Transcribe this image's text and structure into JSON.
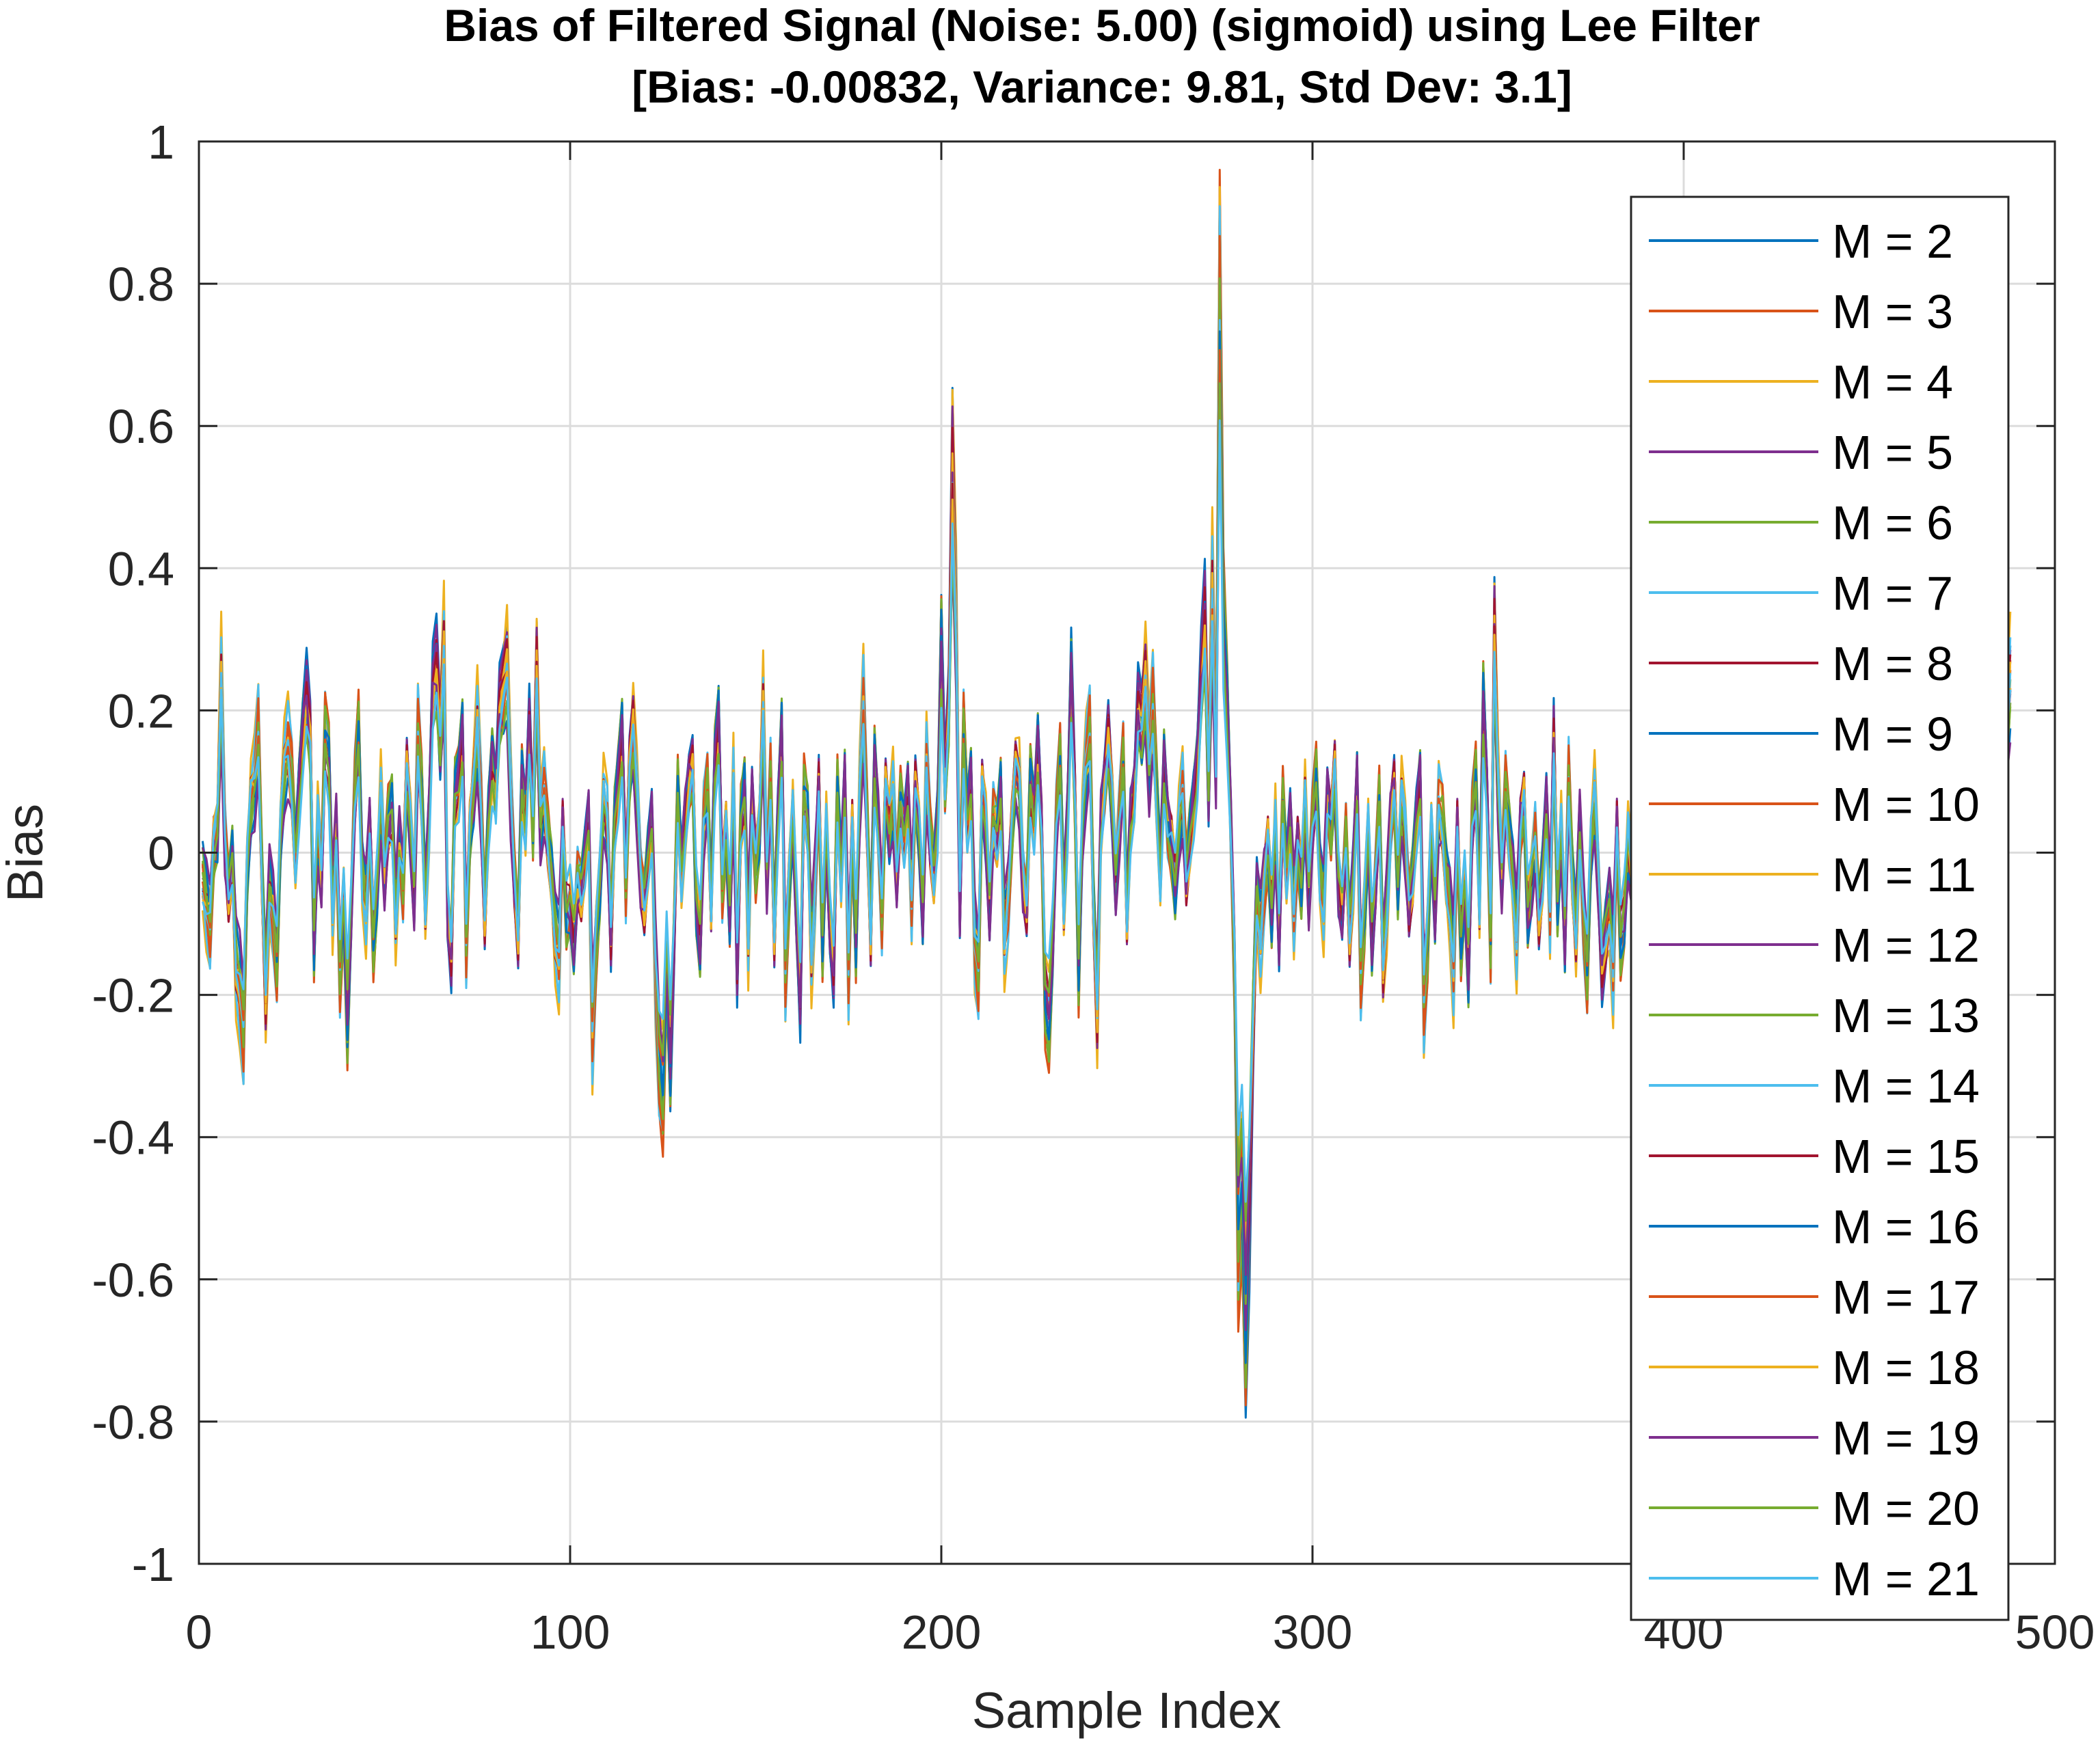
{
  "chart_data": {
    "type": "line",
    "title": "Bias of Filtered Signal (Noise: 5.00) (sigmoid) using Lee Filter",
    "subtitle": "[Bias: -0.00832, Variance: 9.81, Std Dev: 3.1]",
    "xlabel": "Sample Index",
    "ylabel": "Bias",
    "xlim": [
      0,
      500
    ],
    "ylim": [
      -1,
      1
    ],
    "x_ticks": [
      "0",
      "100",
      "200",
      "300",
      "400",
      "500"
    ],
    "y_ticks": [
      "1",
      "0.8",
      "0.6",
      "0.4",
      "0.2",
      "0",
      "-0.2",
      "-0.4",
      "-0.6",
      "-0.8",
      "-1"
    ],
    "grid": true,
    "legend_position": "right",
    "x_start": 1,
    "x_step": 1,
    "base_series": [
      -0.05,
      -0.09,
      -0.12,
      0.02,
      0.05,
      0.3,
      0.02,
      -0.08,
      -0.02,
      -0.2,
      -0.23,
      -0.3,
      -0.02,
      0.1,
      0.12,
      0.2,
      -0.05,
      -0.25,
      -0.06,
      -0.1,
      -0.18,
      0.05,
      0.15,
      0.18,
      0.12,
      -0.02,
      0.1,
      0.2,
      0.27,
      0.2,
      -0.15,
      0.05,
      -0.05,
      0.2,
      0.15,
      -0.1,
      0.05,
      -0.2,
      -0.08,
      -0.28,
      -0.1,
      0.1,
      0.2,
      -0.05,
      -0.1,
      0.05,
      -0.15,
      -0.05,
      0.1,
      -0.05,
      0.05,
      0.07,
      -0.12,
      0.02,
      -0.05,
      0.15,
      0.05,
      -0.08,
      0.2,
      0.1,
      -0.1,
      0.05,
      0.28,
      0.32,
      0.2,
      0.35,
      -0.1,
      -0.18,
      0.1,
      0.12,
      0.2,
      -0.15,
      0.05,
      0.12,
      0.22,
      0.08,
      -0.12,
      0.05,
      0.15,
      0.1,
      0.25,
      0.28,
      0.32,
      0.1,
      -0.05,
      -0.15,
      0.12,
      0.05,
      0.22,
      0.05,
      0.32,
      0.05,
      0.1,
      0.02,
      -0.05,
      -0.15,
      -0.18,
      0.05,
      -0.1,
      -0.08,
      -0.15,
      -0.05,
      -0.08,
      -0.02,
      0.05,
      -0.3,
      -0.15,
      -0.05,
      0.1,
      0.05,
      -0.15,
      0.05,
      0.12,
      0.2,
      -0.05,
      0.15,
      0.22,
      0.1,
      -0.05,
      -0.1,
      -0.02,
      0.05,
      -0.2,
      -0.35,
      -0.4,
      -0.18,
      -0.35,
      -0.15,
      0.1,
      -0.05,
      0.05,
      0.12,
      0.15,
      -0.08,
      -0.15,
      0.05,
      0.1,
      -0.1,
      0.15,
      0.22,
      -0.05,
      0.05,
      -0.1,
      0.12,
      -0.2,
      0.05,
      0.1,
      -0.15,
      0.1,
      -0.02,
      0.05,
      0.25,
      -0.05,
      0.12,
      -0.15,
      0.05,
      0.2,
      -0.2,
      -0.05,
      0.08,
      -0.1,
      -0.25,
      0.1,
      0.05,
      -0.18,
      -0.05,
      0.12,
      -0.15,
      0.05,
      -0.12,
      -0.2,
      0.1,
      -0.05,
      0.12,
      -0.2,
      0.05,
      -0.15,
      0.1,
      0.25,
      0.05,
      -0.15,
      0.15,
      0.05,
      -0.1,
      0.12,
      0.05,
      0.1,
      -0.05,
      0.08,
      0.02,
      0.1,
      -0.08,
      0.12,
      0.05,
      -0.1,
      0.15,
      0.02,
      -0.05,
      0.05,
      0.35,
      0.12,
      0.25,
      0.65,
      0.4,
      -0.1,
      0.2,
      0.05,
      0.12,
      -0.15,
      -0.2,
      0.12,
      0.05,
      -0.1,
      0.05,
      0.02,
      0.1,
      -0.15,
      -0.08,
      0.05,
      0.15,
      0.12,
      -0.05,
      -0.1,
      0.12,
      0.05,
      0.18,
      0.05,
      -0.25,
      -0.28,
      -0.15,
      0.05,
      0.15,
      -0.1,
      0.05,
      0.3,
      0.1,
      -0.2,
      0.05,
      0.15,
      0.2,
      -0.1,
      -0.28,
      0.05,
      0.12,
      0.2,
      0.1,
      -0.05,
      0.05,
      0.15,
      -0.12,
      0.05,
      0.1,
      0.25,
      0.22,
      0.3,
      0.15,
      0.25,
      0.1,
      -0.05,
      0.15,
      0.05,
      0.02,
      -0.05,
      0.05,
      0.1,
      -0.05,
      0.02,
      0.08,
      0.15,
      0.3,
      0.4,
      0.12,
      0.45,
      0.15,
      0.95,
      0.4,
      0.25,
      0.05,
      -0.2,
      -0.65,
      -0.55,
      -0.78,
      -0.6,
      -0.3,
      -0.08,
      -0.15,
      -0.05,
      0.02,
      -0.1,
      0.05,
      -0.15,
      0.08,
      -0.05,
      0.05,
      -0.1,
      0.02,
      -0.05,
      0.1,
      -0.08,
      0.05,
      0.12,
      -0.05,
      -0.1,
      0.1,
      0.05,
      0.15,
      -0.05,
      -0.1,
      0.02,
      -0.15,
      -0.05,
      0.12,
      -0.2,
      -0.1,
      0.05,
      -0.15,
      -0.05,
      0.08,
      -0.2,
      -0.1,
      0.05,
      0.12,
      -0.05,
      0.1,
      0.02,
      -0.1,
      -0.05,
      0.05,
      0.12,
      -0.25,
      -0.15,
      0.05,
      -0.1,
      0.08,
      0.05,
      -0.05,
      -0.1,
      -0.2,
      0.05,
      -0.15,
      -0.05,
      -0.2,
      0.05,
      0.12,
      -0.1,
      0.25,
      0.1,
      -0.15,
      0.38,
      0.12,
      -0.05,
      0.1,
      0.02,
      -0.05,
      -0.15,
      0.05,
      0.1,
      -0.1,
      -0.05,
      0.02,
      -0.12,
      -0.05,
      0.08,
      -0.1,
      0.2,
      -0.08,
      0.05,
      -0.15,
      0.12,
      -0.05,
      -0.15,
      0.05,
      -0.1,
      -0.2,
      0.02,
      0.1,
      -0.05,
      -0.2,
      -0.15,
      -0.1,
      -0.2,
      0.05,
      -0.15,
      -0.1,
      0.02,
      -0.05,
      -0.2,
      -0.1,
      -0.15,
      0.05,
      -0.1,
      -0.25,
      -0.3,
      -0.1,
      0.05,
      -0.15,
      -0.02,
      -0.1,
      0.05,
      -0.2,
      0.12,
      -0.15,
      0.05,
      -0.1,
      0.2,
      0.1,
      -0.05,
      0.15,
      -0.15,
      0.05,
      0.12,
      -0.1,
      0.22,
      0.1,
      -0.05,
      0.15,
      0.05,
      0.2,
      -0.1,
      0.05,
      0.12,
      0.05,
      -0.2,
      -0.05,
      0.1,
      -0.1,
      0.2,
      0.05,
      0.15,
      -0.05,
      0.1,
      0.02,
      0.18,
      -0.15,
      0.05,
      -0.05,
      0.1,
      0.05,
      0.12,
      -0.1,
      0.02,
      0.05,
      -0.05,
      0.1,
      -0.15,
      0.05,
      0.2,
      0.05,
      -0.1,
      0.15,
      0.12,
      -0.05,
      0.1,
      -0.02,
      0.05,
      0.15,
      -0.08,
      0.12,
      -0.1,
      0.05,
      -0.15,
      -0.05,
      0.1,
      -0.1,
      0.08,
      -0.2,
      -0.05,
      0.15,
      0.1,
      -0.05,
      0.12,
      0.02,
      0.05,
      -0.1,
      0.2,
      -0.25,
      -0.05,
      0.1,
      -0.08,
      0.05,
      -0.12,
      -0.25,
      0.1,
      0.12,
      -0.05,
      0.05,
      0.2,
      0.3
    ],
    "series": [
      {
        "name": "M = 2",
        "color": "#0072BD"
      },
      {
        "name": "M = 3",
        "color": "#D95319"
      },
      {
        "name": "M = 4",
        "color": "#EDB120"
      },
      {
        "name": "M = 5",
        "color": "#7E2F8E"
      },
      {
        "name": "M = 6",
        "color": "#77AC30"
      },
      {
        "name": "M = 7",
        "color": "#4DBEEE"
      },
      {
        "name": "M = 8",
        "color": "#A2142F"
      },
      {
        "name": "M = 9",
        "color": "#0072BD"
      },
      {
        "name": "M = 10",
        "color": "#D95319"
      },
      {
        "name": "M = 11",
        "color": "#EDB120"
      },
      {
        "name": "M = 12",
        "color": "#7E2F8E"
      },
      {
        "name": "M = 13",
        "color": "#77AC30"
      },
      {
        "name": "M = 14",
        "color": "#4DBEEE"
      },
      {
        "name": "M = 15",
        "color": "#A2142F"
      },
      {
        "name": "M = 16",
        "color": "#0072BD"
      },
      {
        "name": "M = 17",
        "color": "#D95319"
      },
      {
        "name": "M = 18",
        "color": "#EDB120"
      },
      {
        "name": "M = 19",
        "color": "#7E2F8E"
      },
      {
        "name": "M = 20",
        "color": "#77AC30"
      },
      {
        "name": "M = 21",
        "color": "#4DBEEE"
      }
    ]
  }
}
